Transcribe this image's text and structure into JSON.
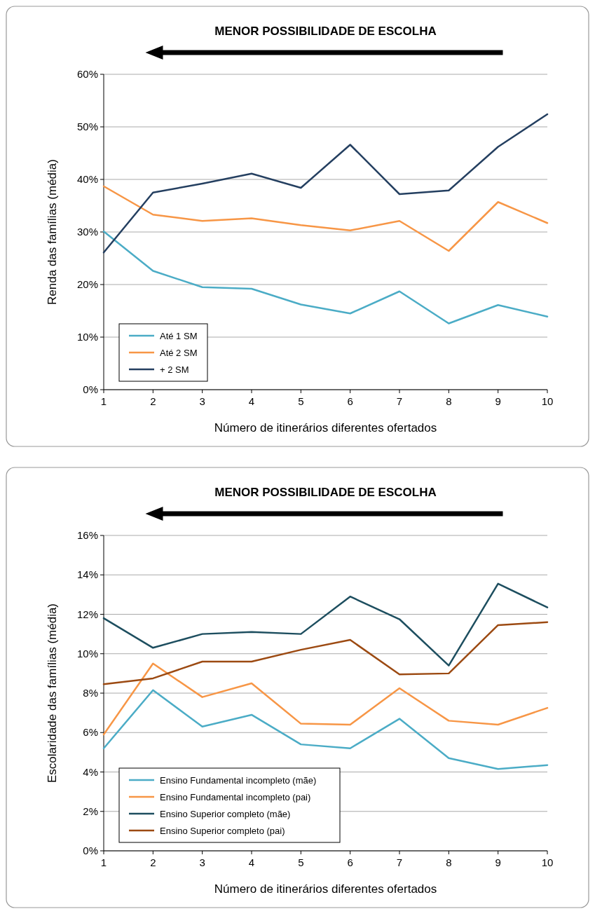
{
  "chart_data": [
    {
      "type": "line",
      "title": "MENOR POSSIBILIDADE DE ESCOLHA",
      "xlabel": "Número de itinerários diferentes ofertados",
      "ylabel": "Renda das famílias (média)",
      "x": [
        1,
        2,
        3,
        4,
        5,
        6,
        7,
        8,
        9,
        10
      ],
      "xlim": [
        1,
        10
      ],
      "xticks": [
        1,
        2,
        3,
        4,
        5,
        6,
        7,
        8,
        9,
        10
      ],
      "ylim": [
        0,
        60
      ],
      "yticks": [
        {
          "value": 0,
          "label": "0%"
        },
        {
          "value": 10,
          "label": "10%"
        },
        {
          "value": 20,
          "label": "20%"
        },
        {
          "value": 30,
          "label": "30%"
        },
        {
          "value": 40,
          "label": "40%"
        },
        {
          "value": 50,
          "label": "50%"
        },
        {
          "value": 60,
          "label": "60%"
        }
      ],
      "grid": "y",
      "legend": "bottom left",
      "marker": "none",
      "series": [
        {
          "name": "Até 1 SM",
          "color": "#4bacc6",
          "values": [
            30.1,
            22.6,
            19.5,
            19.2,
            16.2,
            14.5,
            18.7,
            12.6,
            16.1,
            13.9
          ]
        },
        {
          "name": "Até 2 SM",
          "color": "#f79646",
          "values": [
            38.7,
            33.3,
            32.1,
            32.6,
            31.3,
            30.3,
            32.1,
            26.4,
            35.7,
            31.7
          ]
        },
        {
          "name": "+ 2 SM",
          "color": "#243f60",
          "values": [
            26.1,
            37.5,
            39.2,
            41.1,
            38.4,
            46.6,
            37.2,
            37.9,
            46.2,
            52.4
          ]
        }
      ]
    },
    {
      "type": "line",
      "title": "MENOR POSSIBILIDADE DE ESCOLHA",
      "xlabel": "Número de itinerários diferentes ofertados",
      "ylabel": "Escolaridade das famílias (média)",
      "x": [
        1,
        2,
        3,
        4,
        5,
        6,
        7,
        8,
        9,
        10
      ],
      "xlim": [
        1,
        10
      ],
      "xticks": [
        1,
        2,
        3,
        4,
        5,
        6,
        7,
        8,
        9,
        10
      ],
      "ylim": [
        0,
        16
      ],
      "yticks": [
        {
          "value": 0,
          "label": "0%"
        },
        {
          "value": 2,
          "label": "2%"
        },
        {
          "value": 4,
          "label": "4%"
        },
        {
          "value": 6,
          "label": "6%"
        },
        {
          "value": 8,
          "label": "8%"
        },
        {
          "value": 10,
          "label": "10%"
        },
        {
          "value": 12,
          "label": "12%"
        },
        {
          "value": 14,
          "label": "14%"
        },
        {
          "value": 16,
          "label": "16%"
        }
      ],
      "grid": "y",
      "legend": "bottom left",
      "marker": "none",
      "series": [
        {
          "name": "Ensino Fundamental incompleto (mãe)",
          "color": "#4bacc6",
          "values": [
            5.2,
            8.15,
            6.3,
            6.9,
            5.4,
            5.2,
            6.7,
            4.7,
            4.15,
            4.35
          ]
        },
        {
          "name": "Ensino Fundamental incompleto (pai)",
          "color": "#f79646",
          "values": [
            5.9,
            9.5,
            7.8,
            8.5,
            6.45,
            6.4,
            8.25,
            6.6,
            6.4,
            7.25
          ]
        },
        {
          "name": "Ensino Superior completo (mãe)",
          "color": "#1d4e5f",
          "values": [
            11.8,
            10.3,
            11.0,
            11.1,
            11.0,
            12.9,
            11.75,
            9.4,
            13.55,
            12.35
          ]
        },
        {
          "name": "Ensino Superior completo (pai)",
          "color": "#9c4a12",
          "values": [
            8.45,
            8.75,
            9.6,
            9.6,
            10.2,
            10.7,
            8.95,
            9.0,
            11.45,
            11.6
          ]
        }
      ]
    }
  ]
}
